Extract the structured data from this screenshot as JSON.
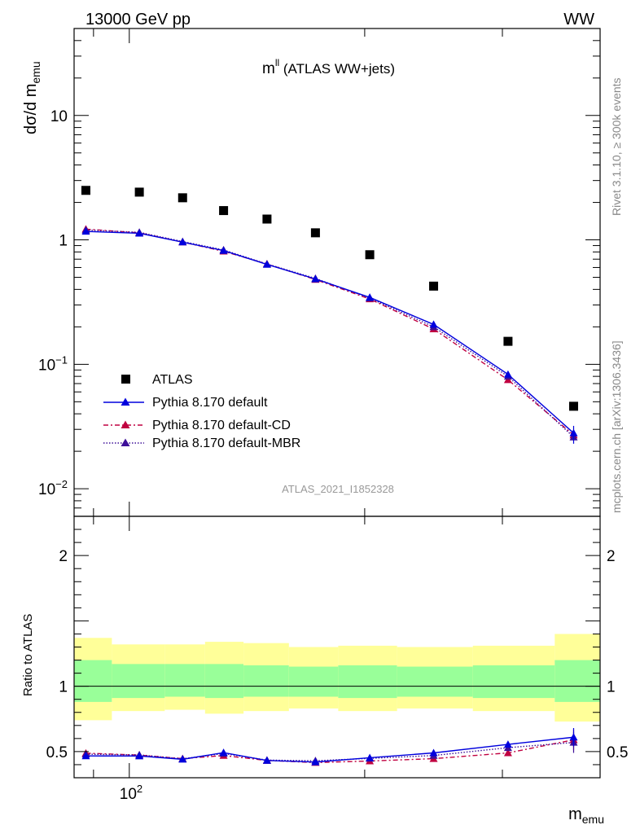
{
  "header": {
    "energy_label": "13000 GeV pp",
    "process_label": "WW"
  },
  "plot": {
    "title_main": "m",
    "title_sup": "ll",
    "title_rest": " (ATLAS WW+jets)",
    "analysis_id": "ATLAS_2021_I1852328",
    "ylabel_main": "dσ/d m",
    "ylabel_sub": "emu",
    "xlabel_main": "m",
    "xlabel_sub": "emu",
    "ratio_ylabel": "Ratio to ATLAS"
  },
  "side": {
    "rivet_label": "Rivet 3.1.10, ≥ 300k events",
    "mcplots_label": "mcplots.cern.ch [arXiv:1306.3436]"
  },
  "legend": {
    "items": [
      {
        "label": "ATLAS"
      },
      {
        "label": "Pythia 8.170 default"
      },
      {
        "label": "Pythia 8.170 default-CD"
      },
      {
        "label": "Pythia 8.170 default-MBR"
      }
    ]
  },
  "chart_data": {
    "type": "scatter",
    "x_scale": "log",
    "main_y_scale": "log",
    "xlim": [
      85,
      400
    ],
    "main_ylim": [
      0.006,
      50
    ],
    "ratio_ylim": [
      0.3,
      2.3
    ],
    "x_tick_labels": [
      "10^2"
    ],
    "main_y_tick_labels": [
      {
        "value": 0.01,
        "base": "10",
        "exp": "−2"
      },
      {
        "value": 0.1,
        "base": "10",
        "exp": "−1"
      },
      {
        "value": 1,
        "base": "1",
        "exp": ""
      },
      {
        "value": 10,
        "base": "10",
        "exp": ""
      }
    ],
    "ratio_y_tick_labels": [
      "0.5",
      "1",
      "2"
    ],
    "bin_edges": [
      85,
      95,
      111,
      125,
      140,
      160,
      185,
      220,
      275,
      350,
      400
    ],
    "x": [
      88,
      103,
      117,
      132,
      150,
      173,
      203,
      245,
      305,
      370
    ],
    "series": [
      {
        "name": "ATLAS",
        "values": [
          2.5,
          2.42,
          2.18,
          1.72,
          1.47,
          1.14,
          0.76,
          0.425,
          0.153,
          0.046
        ],
        "band_inner": [
          [
            0.88,
            1.2
          ],
          [
            0.91,
            1.17
          ],
          [
            0.92,
            1.17
          ],
          [
            0.91,
            1.17
          ],
          [
            0.92,
            1.16
          ],
          [
            0.92,
            1.15
          ],
          [
            0.91,
            1.16
          ],
          [
            0.92,
            1.15
          ],
          [
            0.91,
            1.16
          ],
          [
            0.88,
            1.2
          ],
          [
            0.88,
            1.2
          ]
        ],
        "band_outer": [
          [
            0.74,
            1.37
          ],
          [
            0.81,
            1.32
          ],
          [
            0.82,
            1.32
          ],
          [
            0.79,
            1.34
          ],
          [
            0.81,
            1.33
          ],
          [
            0.83,
            1.3
          ],
          [
            0.81,
            1.31
          ],
          [
            0.83,
            1.3
          ],
          [
            0.81,
            1.31
          ],
          [
            0.73,
            1.4
          ],
          [
            0.73,
            1.4
          ]
        ]
      },
      {
        "name": "Pythia 8.170 default",
        "values": [
          1.17,
          1.13,
          0.96,
          0.82,
          0.635,
          0.485,
          0.345,
          0.209,
          0.083,
          0.028
        ],
        "ratio": [
          0.467,
          0.466,
          0.441,
          0.492,
          0.432,
          0.42,
          0.453,
          0.49,
          0.555,
          0.61
        ],
        "ratio_err": [
          0.0,
          0.0,
          0.005,
          0.008,
          0.005,
          0.008,
          0.008,
          0.008,
          0.015,
          0.07
        ]
      },
      {
        "name": "Pythia 8.170 default-CD",
        "values": [
          1.22,
          1.14,
          0.96,
          0.81,
          0.64,
          0.48,
          0.335,
          0.192,
          0.075,
          0.027
        ],
        "ratio": [
          0.488,
          0.473,
          0.446,
          0.47,
          0.432,
          0.416,
          0.428,
          0.446,
          0.49,
          0.59
        ],
        "ratio_err": [
          0.0,
          0.0,
          0.005,
          0.006,
          0.005,
          0.006,
          0.006,
          0.006,
          0.008,
          0.08
        ]
      },
      {
        "name": "Pythia 8.170 default-MBR",
        "values": [
          1.2,
          1.15,
          0.97,
          0.83,
          0.64,
          0.49,
          0.34,
          0.2,
          0.08,
          0.026
        ],
        "ratio": [
          0.48,
          0.475,
          0.445,
          0.485,
          0.435,
          0.43,
          0.448,
          0.47,
          0.53,
          0.57
        ],
        "ratio_err": [
          0.0,
          0.0,
          0.005,
          0.006,
          0.005,
          0.006,
          0.006,
          0.006,
          0.01,
          0.08
        ]
      }
    ],
    "colors": {
      "data": "#000000",
      "default": "#0000dd",
      "cd": "#c00040",
      "mbr": "#3d0f99",
      "band_inner": "#99ff99",
      "band_outer": "#ffff99"
    }
  }
}
